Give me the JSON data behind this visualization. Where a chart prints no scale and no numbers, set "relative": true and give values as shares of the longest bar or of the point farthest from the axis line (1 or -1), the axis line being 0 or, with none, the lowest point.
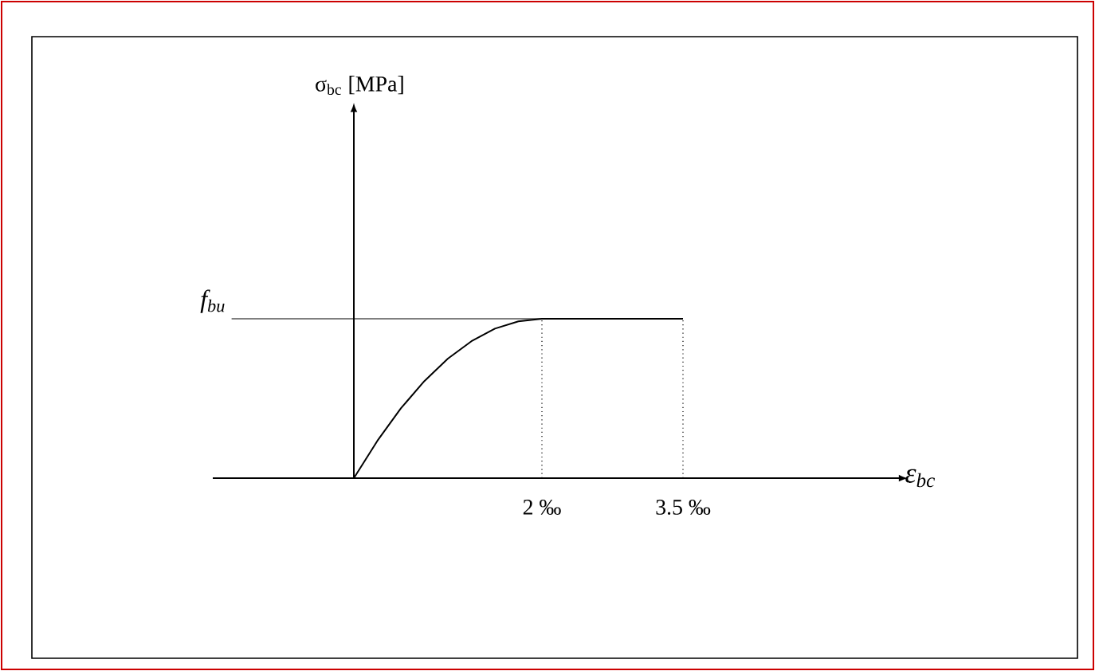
{
  "chart_data": {
    "type": "line",
    "relative": true,
    "xlabel": "ε$_{bc}$",
    "annotations": [
      "σ$_{bc}$ [MPa]"
    ],
    "x": [
      0,
      0.25,
      0.5,
      0.75,
      1,
      1.25,
      1.5,
      1.75,
      2,
      3.5
    ],
    "series": [
      {
        "color": "#000000",
        "values": [
          0,
          0.234,
          0.438,
          0.609,
          0.75,
          0.859,
          0.938,
          0.984,
          1,
          1
        ]
      }
    ],
    "xlim": [
      -1.5,
      5.8
    ],
    "xticks": [
      {
        "value": 2,
        "label": "2 ‰"
      },
      {
        "value": 3.5,
        "label": "3.5 ‰"
      }
    ],
    "ref_lines": [
      {
        "axis": "y",
        "value": 1,
        "label": "f$_{bu}$",
        "line_style": "solid"
      },
      {
        "axis": "x",
        "value": 2,
        "line_style": "dotted"
      },
      {
        "axis": "x",
        "value": 3.5,
        "line_style": "dotted"
      }
    ],
    "marker": "none",
    "line_style": "solid"
  }
}
